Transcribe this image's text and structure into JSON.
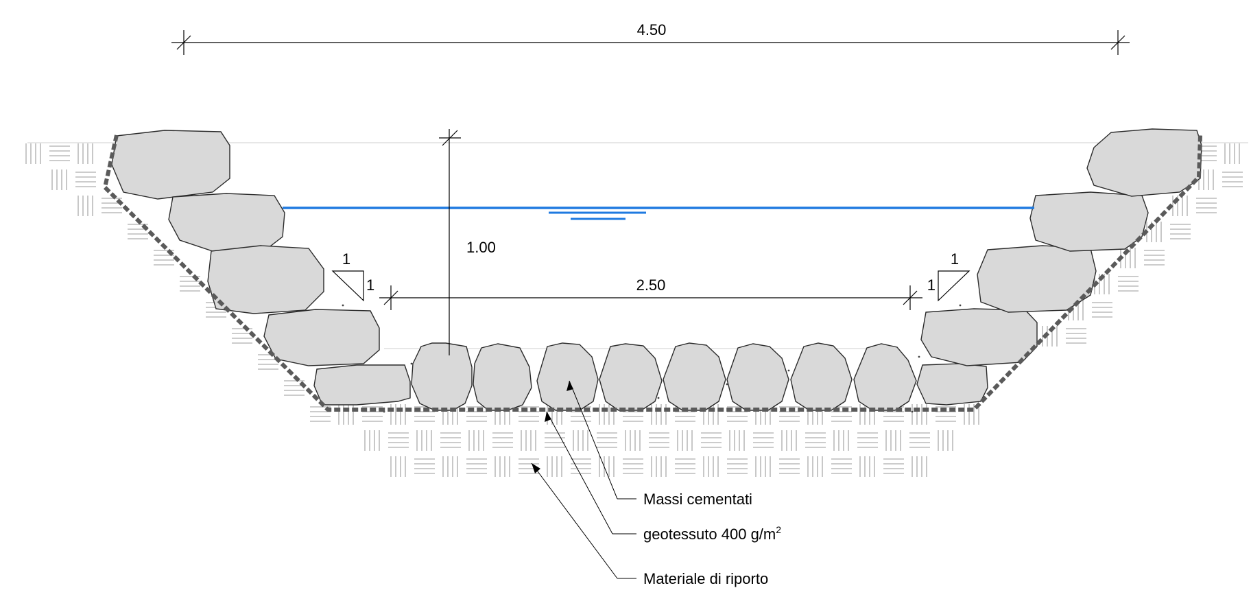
{
  "dimensions": {
    "top_width": "4.50",
    "bottom_width": "2.50",
    "depth": "1.00"
  },
  "slopes": {
    "left": {
      "rise": "1",
      "run": "1"
    },
    "right": {
      "rise": "1",
      "run": "1"
    }
  },
  "labels": {
    "boulders": "Massi cementati",
    "geotextile_prefix": "geotessuto 400 g/m",
    "geotextile_sup": "2",
    "fill_material": "Materiale di riporto"
  },
  "colors": {
    "water": "#1f7ae0",
    "boulder_fill": "#d9d9d9",
    "geotextile": "#5a5a5a"
  }
}
